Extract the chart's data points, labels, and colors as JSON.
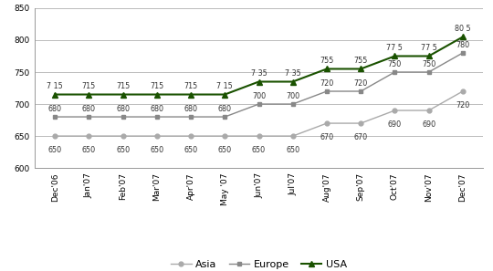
{
  "months": [
    "Dec'06",
    "Jan'07",
    "Feb'07",
    "Mar'07",
    "Apr'07",
    "May '07",
    "Jun'07",
    "Jul'07",
    "Aug'07",
    "Sep'07",
    "Oct'07",
    "Nov'07",
    "Dec'07"
  ],
  "asia": [
    650,
    650,
    650,
    650,
    650,
    650,
    650,
    650,
    670,
    670,
    690,
    690,
    720
  ],
  "europe": [
    680,
    680,
    680,
    680,
    680,
    680,
    700,
    700,
    720,
    720,
    750,
    750,
    780
  ],
  "usa": [
    715,
    715,
    715,
    715,
    715,
    715,
    735,
    735,
    755,
    755,
    775,
    775,
    805
  ],
  "asia_labels": [
    "650",
    "650",
    "650",
    "650",
    "650",
    "650",
    "650",
    "650",
    "670",
    "670",
    "690",
    "690",
    "720"
  ],
  "europe_labels": [
    "680",
    "680",
    "680",
    "680",
    "680",
    "680",
    "700",
    "700",
    "720",
    "720",
    "750",
    "750",
    "780"
  ],
  "usa_labels": [
    "7 15",
    "715",
    "715",
    "715",
    "715",
    "7 15",
    "7 35",
    "7 35",
    "755",
    "755",
    "77 5",
    "77 5",
    "80 5"
  ],
  "asia_color": "#aaaaaa",
  "europe_color": "#888888",
  "usa_color": "#1a5200",
  "ylim": [
    600,
    850
  ],
  "yticks": [
    600,
    650,
    700,
    750,
    800,
    850
  ],
  "bg_color": "#ffffff",
  "grid_color": "#bbbbbb",
  "label_fontsize": 5.8,
  "tick_fontsize": 6.5,
  "legend_fontsize": 8.0
}
